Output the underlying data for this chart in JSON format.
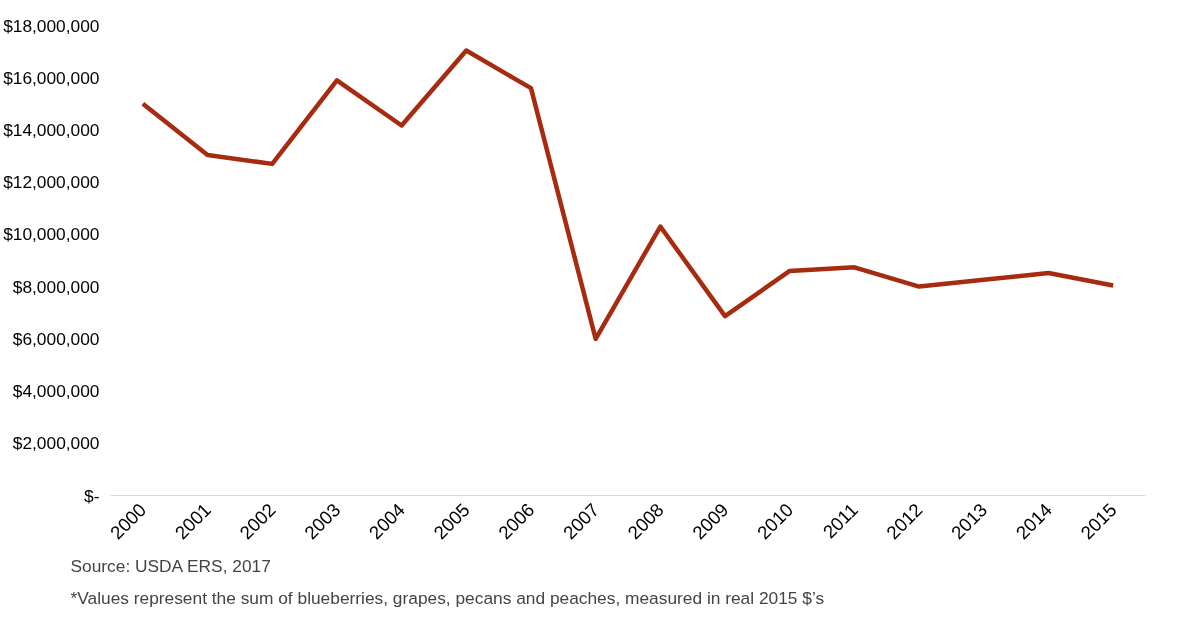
{
  "chart_data": {
    "type": "line",
    "categories": [
      "2000",
      "2001",
      "2002",
      "2003",
      "2004",
      "2005",
      "2006",
      "2007",
      "2008",
      "2009",
      "2010",
      "2011",
      "2012",
      "2013",
      "2014",
      "2015"
    ],
    "series": [
      {
        "color": "#a62b10",
        "values": [
          15000000,
          13040000,
          12700000,
          15900000,
          14170000,
          17040000,
          15600000,
          6000000,
          10300000,
          6870000,
          8600000,
          8740000,
          8000000,
          8260000,
          8520000,
          8040000
        ]
      }
    ],
    "ylim": [
      0,
      18000000
    ],
    "yticks": [
      {
        "value": 0,
        "label": "$-"
      },
      {
        "value": 2000000,
        "label": "$2,000,000"
      },
      {
        "value": 4000000,
        "label": "$4,000,000"
      },
      {
        "value": 6000000,
        "label": "$6,000,000"
      },
      {
        "value": 8000000,
        "label": "$8,000,000"
      },
      {
        "value": 10000000,
        "label": "$10,000,000"
      },
      {
        "value": 12000000,
        "label": "$12,000,000"
      },
      {
        "value": 14000000,
        "label": "$14,000,000"
      },
      {
        "value": 16000000,
        "label": "$16,000,000"
      },
      {
        "value": 18000000,
        "label": "$18,000,000"
      }
    ],
    "grid": false,
    "marker": "none",
    "line_style": "solid",
    "annotations": [
      "Source: USDA ERS, 2017",
      "*Values represent the sum of blueberries, grapes, pecans and peaches, measured in real 2015 $’s"
    ]
  }
}
